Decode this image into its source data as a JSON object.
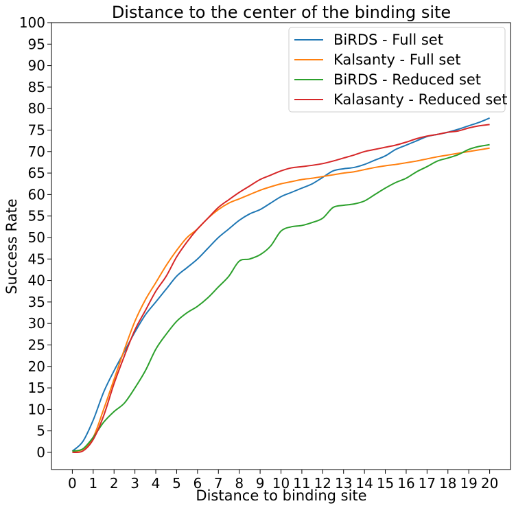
{
  "chart_data": {
    "type": "line",
    "title": "Distance to the center of the binding site",
    "xlabel": "Distance to binding site",
    "ylabel": "Success Rate",
    "xlim": [
      -1,
      21
    ],
    "ylim": [
      -4,
      100
    ],
    "xticks": [
      0,
      1,
      2,
      3,
      4,
      5,
      6,
      7,
      8,
      9,
      10,
      11,
      12,
      13,
      14,
      15,
      16,
      17,
      18,
      19,
      20
    ],
    "yticks": [
      0,
      5,
      10,
      15,
      20,
      25,
      30,
      35,
      40,
      45,
      50,
      55,
      60,
      65,
      70,
      75,
      80,
      85,
      90,
      95,
      100
    ],
    "grid": false,
    "legend_position": "top-right",
    "x": [
      0,
      0.5,
      1,
      1.5,
      2,
      2.5,
      3,
      3.5,
      4,
      4.5,
      5,
      5.5,
      6,
      6.5,
      7,
      7.5,
      8,
      8.5,
      9,
      9.5,
      10,
      10.5,
      11,
      11.5,
      12,
      12.5,
      13,
      13.5,
      14,
      14.5,
      15,
      15.5,
      16,
      16.5,
      17,
      17.5,
      18,
      18.5,
      19,
      19.5,
      20
    ],
    "series": [
      {
        "name": "BiRDS - Full set",
        "color": "#1f77b4",
        "values": [
          0.3,
          2.5,
          7.5,
          14,
          19,
          23.5,
          28,
          32,
          35,
          38,
          41,
          43,
          45,
          47.5,
          50,
          52,
          54,
          55.5,
          56.5,
          58,
          59.5,
          60.5,
          61.5,
          62.5,
          64,
          65.5,
          66,
          66.3,
          67,
          68,
          69,
          70.5,
          71.5,
          72.5,
          73.5,
          74,
          74.5,
          75.2,
          76,
          76.8,
          77.8
        ]
      },
      {
        "name": "Kalsanty - Full set",
        "color": "#ff7f0e",
        "values": [
          0.2,
          0.7,
          3.5,
          10,
          17,
          24,
          30.5,
          35.5,
          39.5,
          43.5,
          47,
          50,
          52,
          54.5,
          56.5,
          58,
          59,
          60,
          61,
          61.8,
          62.5,
          63,
          63.5,
          63.8,
          64.2,
          64.6,
          65,
          65.3,
          65.8,
          66.3,
          66.7,
          67,
          67.4,
          67.8,
          68.3,
          68.8,
          69.2,
          69.6,
          70,
          70.4,
          70.8
        ]
      },
      {
        "name": "BiRDS - Reduced set",
        "color": "#2ca02c",
        "values": [
          0.3,
          0.8,
          3.5,
          7,
          9.5,
          11.5,
          15,
          19,
          24,
          27.5,
          30.5,
          32.5,
          34,
          36,
          38.5,
          41,
          44.5,
          45,
          46,
          48,
          51.5,
          52.5,
          52.8,
          53.5,
          54.5,
          57,
          57.5,
          57.8,
          58.5,
          60,
          61.5,
          62.8,
          63.8,
          65.3,
          66.5,
          67.8,
          68.5,
          69.3,
          70.5,
          71.2,
          71.6
        ]
      },
      {
        "name": "Kalasanty - Reduced set",
        "color": "#d62728",
        "values": [
          0,
          0.3,
          3,
          8.5,
          16,
          22.5,
          28.5,
          33,
          37.5,
          41,
          45.5,
          49,
          52,
          54.5,
          57,
          58.8,
          60.5,
          62,
          63.5,
          64.5,
          65.5,
          66.2,
          66.5,
          66.8,
          67.2,
          67.8,
          68.5,
          69.2,
          70,
          70.5,
          71,
          71.5,
          72.2,
          73,
          73.6,
          74,
          74.5,
          74.8,
          75.5,
          76,
          76.3
        ]
      }
    ]
  }
}
